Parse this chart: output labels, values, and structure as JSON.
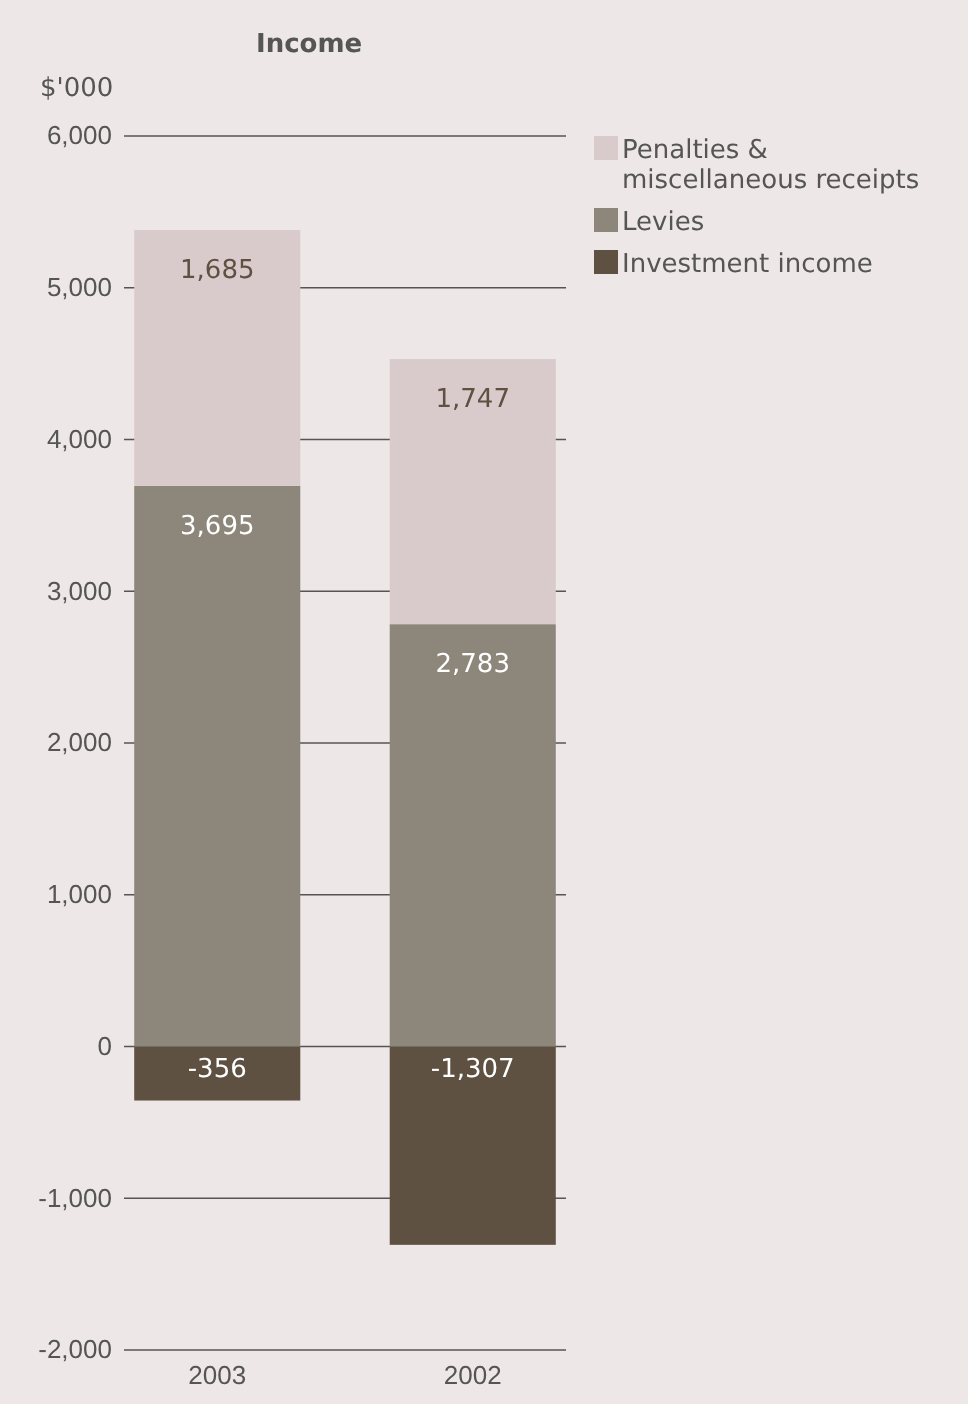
{
  "chart_data": {
    "type": "bar",
    "title": "Income",
    "ylabel": "$'000",
    "categories": [
      "2003",
      "2002"
    ],
    "stacked": true,
    "grid": "y",
    "legend": "top right",
    "ylim": [
      -2000,
      6000
    ],
    "yticks": [
      {
        "value": -2000,
        "label": "-2,000"
      },
      {
        "value": -1000,
        "label": "-1,000"
      },
      0,
      {
        "value": 1000,
        "label": "1,000"
      },
      {
        "value": 2000,
        "label": "2,000"
      },
      {
        "value": 3000,
        "label": "3,000"
      },
      {
        "value": 4000,
        "label": "4,000"
      },
      {
        "value": 5000,
        "label": "5,000"
      },
      {
        "value": 6000,
        "label": "6,000"
      }
    ],
    "series": [
      {
        "name": "Investment income",
        "color": "#5e5141",
        "values": [
          -356,
          -1307
        ],
        "value_labels": [
          "-356",
          "-1,307"
        ]
      },
      {
        "name": "Levies",
        "color": "#8c867b",
        "values": [
          3695,
          2783
        ],
        "value_labels": [
          "3,695",
          "2,783"
        ]
      },
      {
        "name": "Penalties & miscellaneous receipts",
        "color": "#d9cbcb",
        "values": [
          1685,
          1747
        ],
        "value_labels": [
          "1,685",
          "1,747"
        ]
      }
    ]
  }
}
